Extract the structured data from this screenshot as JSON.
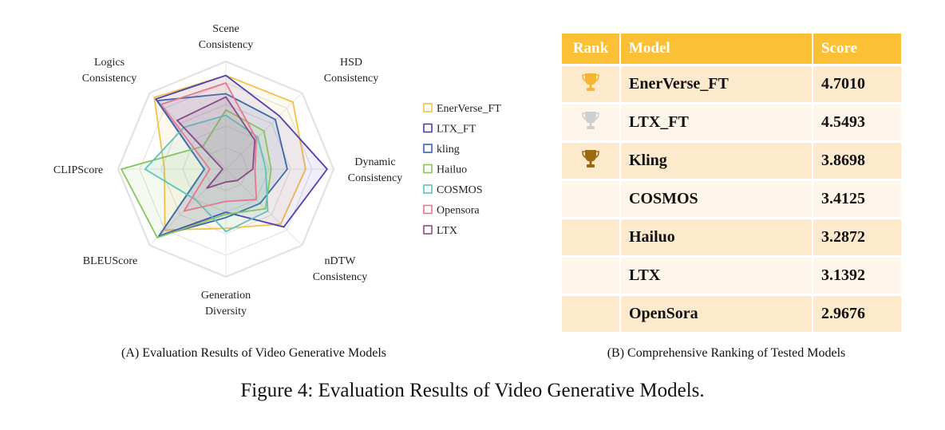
{
  "chart_data": [
    {
      "type": "radar",
      "axes": [
        "Scene Consistency",
        "HSD Consistency",
        "Dynamic Consistency",
        "nDTW Consistency",
        "Generation Diversity",
        "BLEUScore",
        "CLIPScore",
        "Logics Consistency"
      ],
      "axis_label_lines": [
        [
          "Scene",
          "Consistency"
        ],
        [
          "HSD",
          "Consistency"
        ],
        [
          "Dynamic",
          "Consistency"
        ],
        [
          "nDTW",
          "Consistency"
        ],
        [
          "Generation",
          "Diversity"
        ],
        [
          "BLEUScore"
        ],
        [
          "CLIPScore"
        ],
        [
          "Logics",
          "Consistency"
        ]
      ],
      "range": [
        0,
        1
      ],
      "grid_levels": [
        0.2,
        0.4,
        0.6,
        0.8,
        1.0
      ],
      "legend_position": "right",
      "series": [
        {
          "name": "EnerVerse_FT",
          "color": "#f5c04a",
          "values": [
            0.87,
            0.88,
            0.74,
            0.72,
            0.55,
            0.8,
            0.57,
            0.94
          ]
        },
        {
          "name": "LTX_FT",
          "color": "#4b3fb8",
          "values": [
            0.87,
            0.7,
            0.94,
            0.76,
            0.4,
            0.88,
            0.2,
            0.92
          ]
        },
        {
          "name": "kling",
          "color": "#3a66b0",
          "values": [
            0.7,
            0.65,
            0.57,
            0.45,
            0.45,
            0.88,
            0.2,
            0.9
          ]
        },
        {
          "name": "Hailuo",
          "color": "#86c55a",
          "values": [
            0.55,
            0.5,
            0.42,
            0.52,
            0.42,
            0.9,
            0.97,
            0.3
          ]
        },
        {
          "name": "COSMOS",
          "color": "#5cc4bd",
          "values": [
            0.5,
            0.42,
            0.37,
            0.55,
            0.58,
            0.4,
            0.75,
            0.55
          ]
        },
        {
          "name": "Opensora",
          "color": "#e8768f",
          "values": [
            0.8,
            0.4,
            0.27,
            0.4,
            0.3,
            0.55,
            0.15,
            0.85
          ]
        },
        {
          "name": "LTX",
          "color": "#8a4a8a",
          "values": [
            0.67,
            0.38,
            0.25,
            0.15,
            0.12,
            0.25,
            0.03,
            0.64
          ]
        }
      ],
      "caption": "(A) Evaluation Results of Video Generative Models"
    },
    {
      "type": "table",
      "columns": [
        "Rank",
        "Model",
        "Score"
      ],
      "rows": [
        {
          "trophy": "gold-trophy-icon",
          "trophy_color": "#f2b632",
          "model": "EnerVerse_FT",
          "score": "4.7010"
        },
        {
          "trophy": "silver-trophy-icon",
          "trophy_color": "#cfcfcf",
          "model": "LTX_FT",
          "score": "4.5493"
        },
        {
          "trophy": "bronze-trophy-icon",
          "trophy_color": "#9a6a12",
          "model": "Kling",
          "score": "3.8698"
        },
        {
          "trophy": "",
          "trophy_color": "",
          "model": "COSMOS",
          "score": "3.4125"
        },
        {
          "trophy": "",
          "trophy_color": "",
          "model": "Hailuo",
          "score": "3.2872"
        },
        {
          "trophy": "",
          "trophy_color": "",
          "model": "LTX",
          "score": "3.1392"
        },
        {
          "trophy": "",
          "trophy_color": "",
          "model": "OpenSora",
          "score": "2.9676"
        }
      ],
      "header_color": "#fbc035",
      "caption": "(B) Comprehensive Ranking of Tested Models"
    }
  ],
  "figure_caption": "Figure 4: Evaluation Results of Video Generative Models."
}
